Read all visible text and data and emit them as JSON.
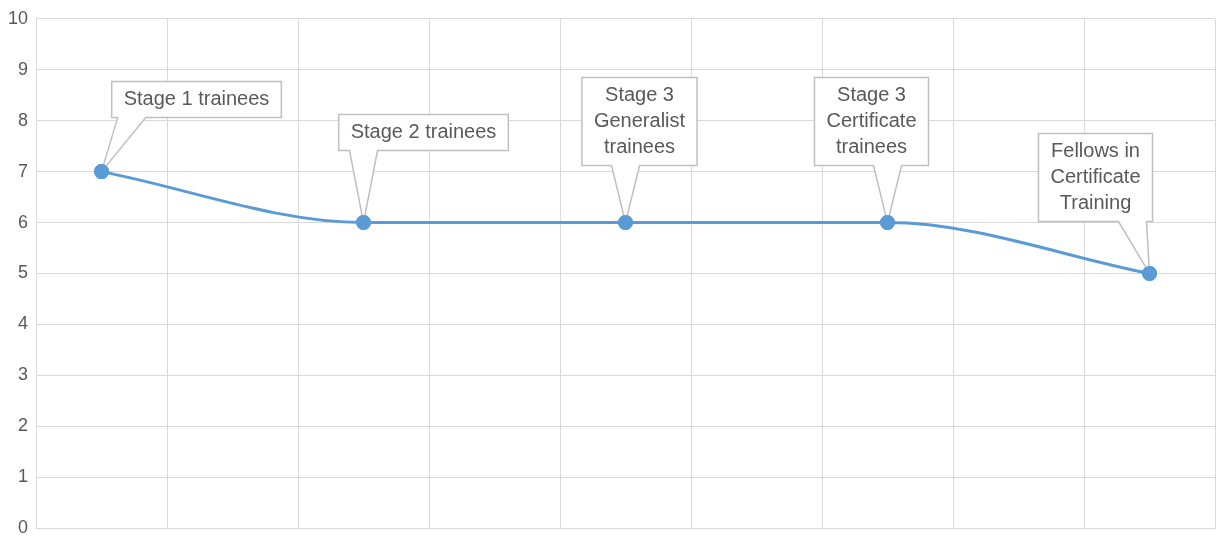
{
  "chart_data": {
    "type": "line",
    "categories": [
      null,
      null,
      null,
      null,
      null,
      null,
      null,
      null,
      null
    ],
    "series": [
      {
        "color": "#5b9bd5",
        "values": [
          7,
          null,
          6,
          null,
          6,
          null,
          6,
          null,
          5
        ]
      }
    ],
    "ylim": [
      0,
      10
    ],
    "yticks": [
      0,
      1,
      2,
      3,
      4,
      5,
      6,
      7,
      8,
      9,
      10
    ],
    "grid": true,
    "legend": false,
    "tick_labels": "y",
    "marker": "circle",
    "line_style": "solid",
    "annotations": [
      "Stage 1 trainees",
      "Stage 2 trainees",
      "Stage 3 Generalist trainees",
      "Stage 3 Certificate trainees",
      "Fellows in Certificate Training"
    ]
  }
}
